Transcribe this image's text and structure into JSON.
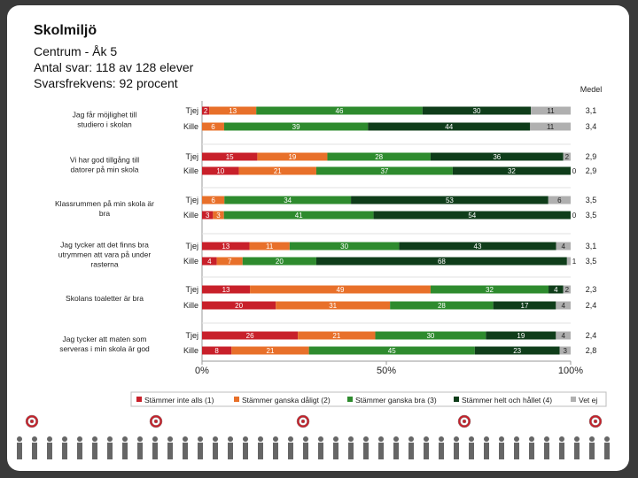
{
  "header": {
    "title": "Skolmiljö",
    "line1": "Centrum - Åk 5",
    "line2": "Antal svar: 118 av 128 elever",
    "line3": "Svarsfrekvens: 92 procent"
  },
  "chart_data": {
    "type": "bar",
    "orientation": "horizontal-stacked-100",
    "mean_label": "Medel",
    "x_ticks": [
      "0%",
      "50%",
      "100%"
    ],
    "legend": [
      {
        "name": "Stämmer inte alls (1)",
        "color": "#c8202a"
      },
      {
        "name": "Stämmer ganska dåligt (2)",
        "color": "#e8702a"
      },
      {
        "name": "Stämmer ganska bra (3)",
        "color": "#2e8b2e"
      },
      {
        "name": "Stämmer helt och hållet (4)",
        "color": "#0f3d1a"
      },
      {
        "name": "Vet ej",
        "color": "#b0b0b0"
      }
    ],
    "groups": [
      {
        "question": "Jag får möjlighet till studiero i skolan",
        "rows": [
          {
            "label": "Tjej",
            "values": [
              2,
              13,
              46,
              30,
              11
            ],
            "labels": [
              "2",
              "13",
              "46",
              "30",
              "11"
            ],
            "mean": "3,1"
          },
          {
            "label": "Kille",
            "values": [
              0,
              6,
              39,
              44,
              11
            ],
            "labels": [
              "0",
              "6",
              "39",
              "44",
              "11"
            ],
            "mean": "3,4"
          }
        ]
      },
      {
        "question": "Vi har god tillgång till datorer på min skola",
        "rows": [
          {
            "label": "Tjej",
            "values": [
              15,
              19,
              28,
              36,
              2
            ],
            "labels": [
              "15",
              "19",
              "28",
              "36",
              "2"
            ],
            "mean": "2,9"
          },
          {
            "label": "Kille",
            "values": [
              10,
              21,
              37,
              32,
              0
            ],
            "labels": [
              "10",
              "21",
              "37",
              "32",
              "0"
            ],
            "mean": "2,9"
          }
        ]
      },
      {
        "question": "Klassrummen på min skola är bra",
        "rows": [
          {
            "label": "Tjej",
            "values": [
              0,
              6,
              34,
              53,
              6
            ],
            "labels": [
              "0",
              "6",
              "34",
              "53",
              "6"
            ],
            "mean": "3,5"
          },
          {
            "label": "Kille",
            "values": [
              3,
              3,
              41,
              54,
              0
            ],
            "labels": [
              "3",
              "3",
              "41",
              "54",
              "0"
            ],
            "mean": "3,5"
          }
        ]
      },
      {
        "question": "Jag tycker att det finns bra utrymmen att vara på under rasterna",
        "rows": [
          {
            "label": "Tjej",
            "values": [
              13,
              11,
              30,
              43,
              4
            ],
            "labels": [
              "13",
              "11",
              "30",
              "43",
              "4"
            ],
            "mean": "3,1"
          },
          {
            "label": "Kille",
            "values": [
              4,
              7,
              20,
              68,
              1
            ],
            "labels": [
              "4",
              "7",
              "20",
              "68",
              "1"
            ],
            "mean": "3,5"
          }
        ]
      },
      {
        "question": "Skolans toaletter är bra",
        "rows": [
          {
            "label": "Tjej",
            "values": [
              13,
              49,
              32,
              4,
              2
            ],
            "labels": [
              "13",
              "49",
              "32",
              "4",
              "2"
            ],
            "mean": "2,3"
          },
          {
            "label": "Kille",
            "values": [
              20,
              31,
              28,
              17,
              4
            ],
            "labels": [
              "20",
              "31",
              "28",
              "17",
              "4"
            ],
            "mean": "2,4"
          }
        ]
      },
      {
        "question": "Jag tycker att maten som serveras i min skola är god",
        "rows": [
          {
            "label": "Tjej",
            "values": [
              26,
              21,
              30,
              19,
              4
            ],
            "labels": [
              "26",
              "21",
              "30",
              "19",
              "4"
            ],
            "mean": "2,4"
          },
          {
            "label": "Kille",
            "values": [
              8,
              21,
              45,
              23,
              3
            ],
            "labels": [
              "8",
              "21",
              "45",
              "23",
              "3"
            ],
            "mean": "2,8"
          }
        ]
      }
    ]
  }
}
